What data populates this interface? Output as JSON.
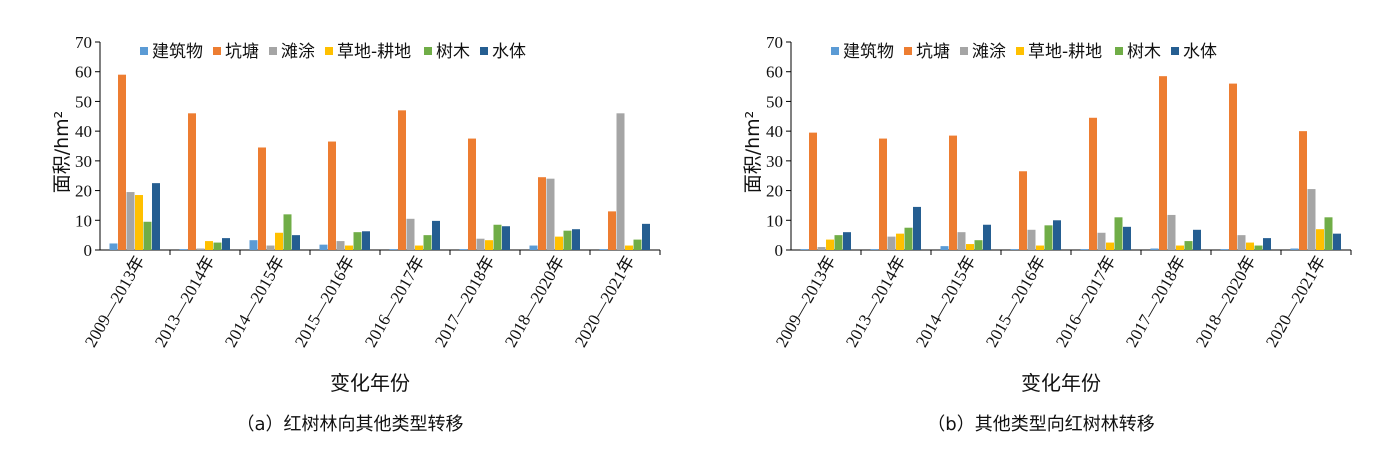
{
  "chart_data": [
    {
      "type": "bar",
      "caption": "（a）红树林向其他类型转移",
      "xlabel": "变化年份",
      "ylabel": "面积/hm²",
      "ylim": [
        0,
        70
      ],
      "yticks": [
        "0",
        "10",
        "20",
        "30",
        "40",
        "50",
        "60",
        "70"
      ],
      "legend_position": "top",
      "grid": false,
      "categories": [
        "2009—2013年",
        "2013—2014年",
        "2014—2015年",
        "2015—2016年",
        "2016—2017年",
        "2017—2018年",
        "2018—2020年",
        "2020—2021年"
      ],
      "series": [
        {
          "name": "建筑物",
          "color": "#5b9bd5",
          "values": [
            2.2,
            0.3,
            3.3,
            1.8,
            0.3,
            0.3,
            1.5,
            0.3
          ]
        },
        {
          "name": "坑塘",
          "color": "#ed7d31",
          "values": [
            59,
            46,
            34.5,
            36.5,
            47,
            37.5,
            24.5,
            13
          ]
        },
        {
          "name": "滩涂",
          "color": "#a5a5a5",
          "values": [
            19.5,
            0.5,
            1.5,
            3,
            10.5,
            3.8,
            24,
            46
          ]
        },
        {
          "name": "草地-耕地",
          "color": "#ffc000",
          "values": [
            18.5,
            3,
            5.8,
            1.5,
            1.5,
            3.3,
            4.5,
            1.5
          ]
        },
        {
          "name": "树木",
          "color": "#70ad47",
          "values": [
            9.5,
            2.5,
            12,
            6,
            5,
            8.5,
            6.5,
            3.5
          ]
        },
        {
          "name": "水体",
          "color": "#255e91",
          "values": [
            22.5,
            4,
            5,
            6.3,
            9.8,
            8,
            7,
            8.8
          ]
        }
      ]
    },
    {
      "type": "bar",
      "caption": "（b）其他类型向红树林转移",
      "xlabel": "变化年份",
      "ylabel": "面积/hm²",
      "ylim": [
        0,
        70
      ],
      "yticks": [
        "0",
        "10",
        "20",
        "30",
        "40",
        "50",
        "60",
        "70"
      ],
      "legend_position": "top",
      "grid": false,
      "categories": [
        "2009—2013年",
        "2013—2014年",
        "2014—2015年",
        "2015—2016年",
        "2016—2017年",
        "2017—2018年",
        "2018—2020年",
        "2020—2021年"
      ],
      "series": [
        {
          "name": "建筑物",
          "color": "#5b9bd5",
          "values": [
            0.3,
            0.3,
            1.3,
            0.3,
            0.3,
            0.5,
            0.3,
            0.5
          ]
        },
        {
          "name": "坑塘",
          "color": "#ed7d31",
          "values": [
            39.5,
            37.5,
            38.5,
            26.5,
            44.5,
            58.5,
            56,
            40
          ]
        },
        {
          "name": "滩涂",
          "color": "#a5a5a5",
          "values": [
            1,
            4.5,
            6,
            6.8,
            5.8,
            11.8,
            5,
            20.5
          ]
        },
        {
          "name": "草地-耕地",
          "color": "#ffc000",
          "values": [
            3.5,
            5.5,
            2,
            1.5,
            2.5,
            1.5,
            2.5,
            7
          ]
        },
        {
          "name": "树木",
          "color": "#70ad47",
          "values": [
            5,
            7.5,
            3.3,
            8.3,
            11,
            3,
            1.5,
            11
          ]
        },
        {
          "name": "水体",
          "color": "#255e91",
          "values": [
            6,
            14.5,
            8.5,
            10,
            7.8,
            6.8,
            4,
            5.5
          ]
        }
      ]
    }
  ]
}
